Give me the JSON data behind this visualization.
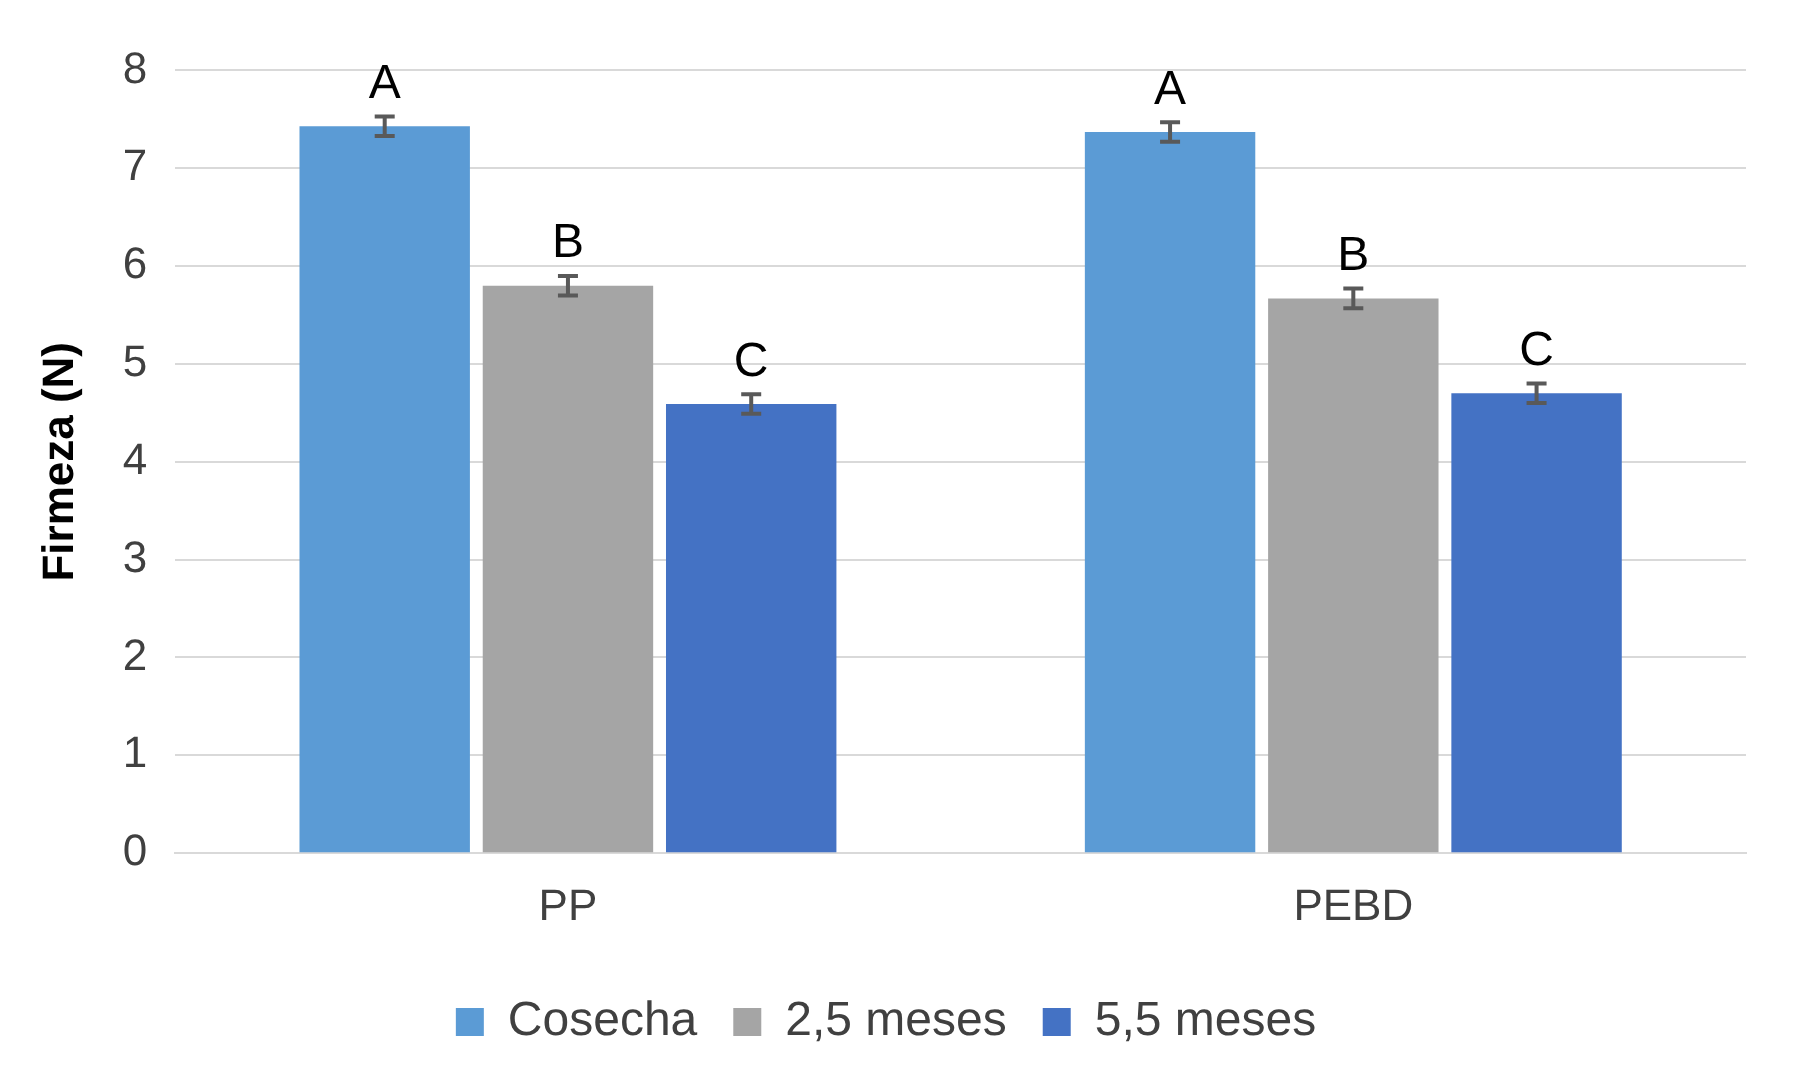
{
  "chart_data": {
    "type": "bar",
    "ylabel": "Firmeza (N)",
    "categories": [
      "PP",
      "PEBD"
    ],
    "series": [
      {
        "name": "Cosecha",
        "color": "#5b9bd5",
        "values": [
          7.43,
          7.37
        ],
        "errors": [
          0.1,
          0.1
        ],
        "value_labels": [
          "A",
          "A"
        ]
      },
      {
        "name": "2,5 meses",
        "color": "#a5a5a5",
        "values": [
          5.8,
          5.67
        ],
        "errors": [
          0.1,
          0.1
        ],
        "value_labels": [
          "B",
          "B"
        ]
      },
      {
        "name": "5,5 meses",
        "color": "#4472c4",
        "values": [
          4.59,
          4.7
        ],
        "errors": [
          0.1,
          0.1
        ],
        "value_labels": [
          "C",
          "C"
        ]
      }
    ],
    "ylim": [
      0,
      8
    ],
    "yticks": [
      0,
      1,
      2,
      3,
      4,
      5,
      6,
      7,
      8
    ],
    "grid": "y",
    "legend": "bottom"
  }
}
